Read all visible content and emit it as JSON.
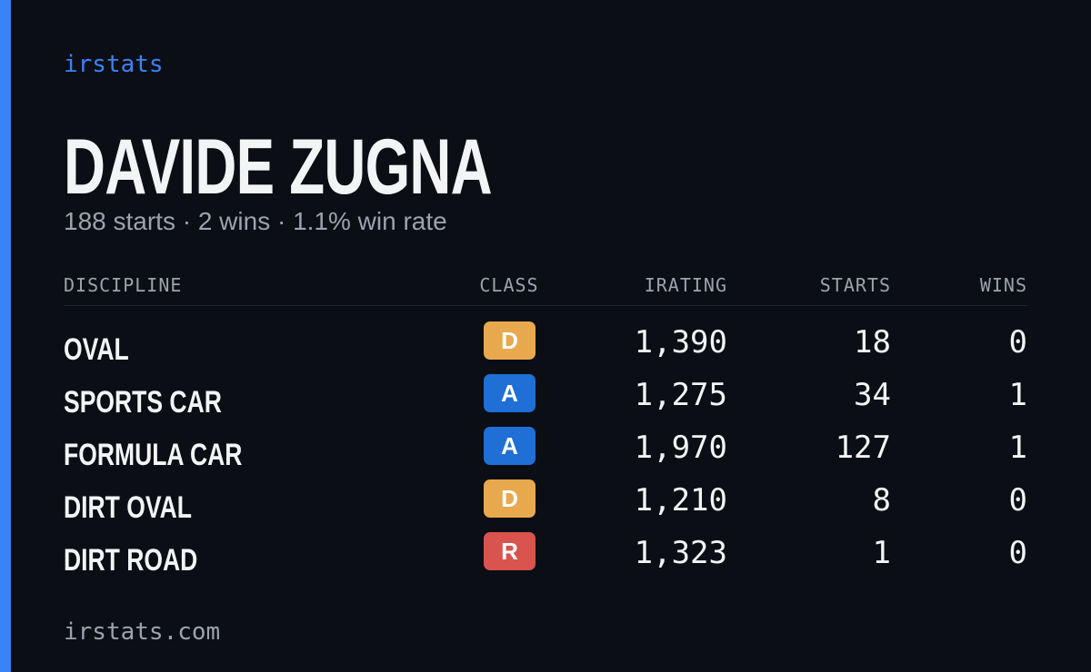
{
  "brand": "irstats",
  "driver": {
    "name": "DAVIDE ZUGNA",
    "summary": "188 starts · 2 wins · 1.1% win rate"
  },
  "table": {
    "headers": [
      "DISCIPLINE",
      "CLASS",
      "IRATING",
      "STARTS",
      "WINS"
    ],
    "rows": [
      {
        "discipline": "OVAL",
        "class": "D",
        "class_color": "#e8a94e",
        "irating": "1,390",
        "starts": 18,
        "wins": 0
      },
      {
        "discipline": "SPORTS CAR",
        "class": "A",
        "class_color": "#1f6fd6",
        "irating": "1,275",
        "starts": 34,
        "wins": 1
      },
      {
        "discipline": "FORMULA CAR",
        "class": "A",
        "class_color": "#1f6fd6",
        "irating": "1,970",
        "starts": 127,
        "wins": 1
      },
      {
        "discipline": "DIRT OVAL",
        "class": "D",
        "class_color": "#e8a94e",
        "irating": "1,210",
        "starts": 8,
        "wins": 0
      },
      {
        "discipline": "DIRT ROAD",
        "class": "R",
        "class_color": "#d9534f",
        "irating": "1,323",
        "starts": 1,
        "wins": 0
      }
    ]
  },
  "footer": "irstats.com"
}
